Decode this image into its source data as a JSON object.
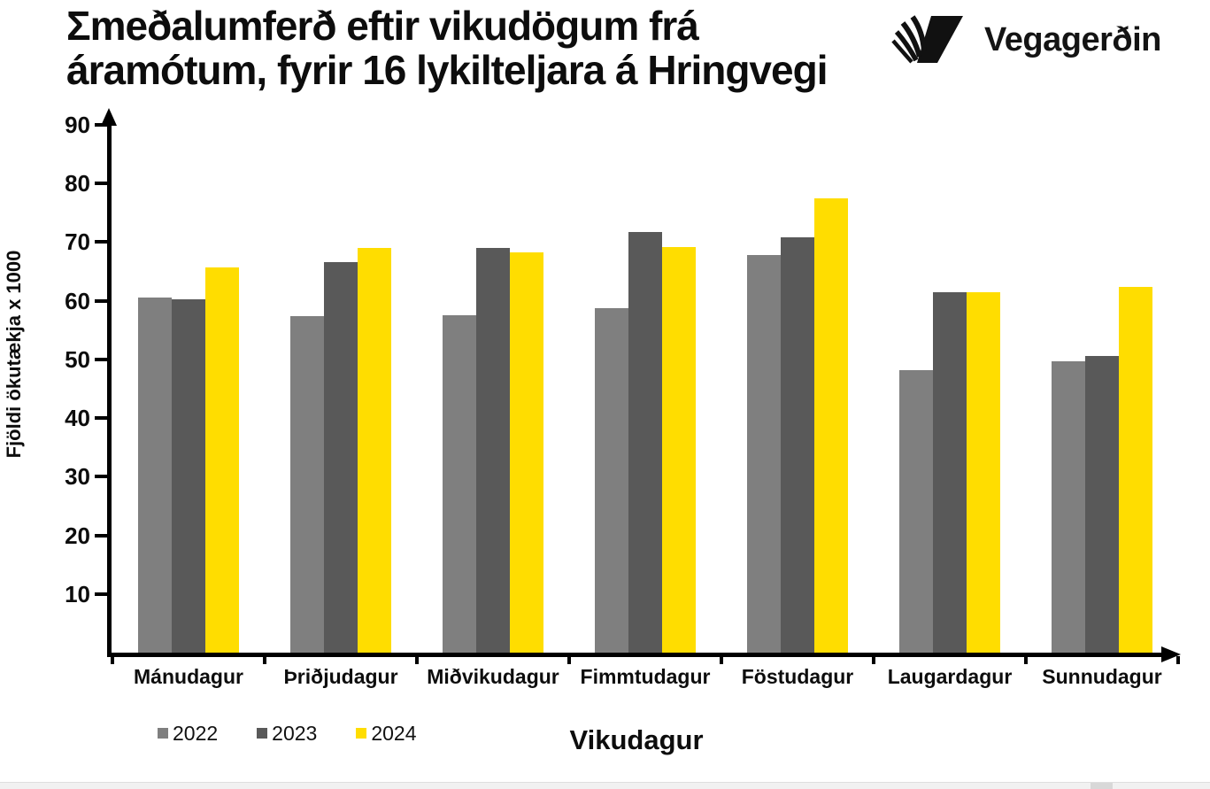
{
  "header": {
    "title_line1": "Σmeðalumferð eftir vikudögum frá",
    "title_line2": "áramótum, fyrir 16 lykilteljara á Hringvegi",
    "logo_text": "Vegagerðin"
  },
  "chart_data": {
    "type": "bar",
    "title": "Σmeðalumferð eftir vikudögum frá áramótum, fyrir 16 lykilteljara á Hringvegi",
    "xlabel": "Vikudagur",
    "ylabel": "Fjöldi ökutækja x 1000",
    "categories": [
      "Mánudagur",
      "Þriðjudagur",
      "Miðvikudagur",
      "Fimmtudagur",
      "Föstudagur",
      "Laugardagur",
      "Sunnudagur"
    ],
    "series": [
      {
        "name": "2022",
        "color": "#7F7F7F",
        "values": [
          60.5,
          57.4,
          57.5,
          58.7,
          67.7,
          48.1,
          49.6
        ]
      },
      {
        "name": "2023",
        "color": "#595959",
        "values": [
          60.3,
          66.5,
          69.0,
          71.7,
          70.8,
          61.5,
          50.5
        ]
      },
      {
        "name": "2024",
        "color": "#FFDD00",
        "values": [
          65.7,
          69.0,
          68.2,
          69.1,
          77.5,
          61.5,
          62.3
        ]
      }
    ],
    "ylim": [
      0,
      90
    ],
    "yticks": [
      10,
      20,
      30,
      40,
      50,
      60,
      70,
      80,
      90
    ],
    "grid": false,
    "legend_position": "bottom-left",
    "axis_color": "#000000"
  },
  "ui": {
    "scrollbar_track_color": "#f1f1f1",
    "scrollbar_thumb_color": "#d8d8d8"
  }
}
